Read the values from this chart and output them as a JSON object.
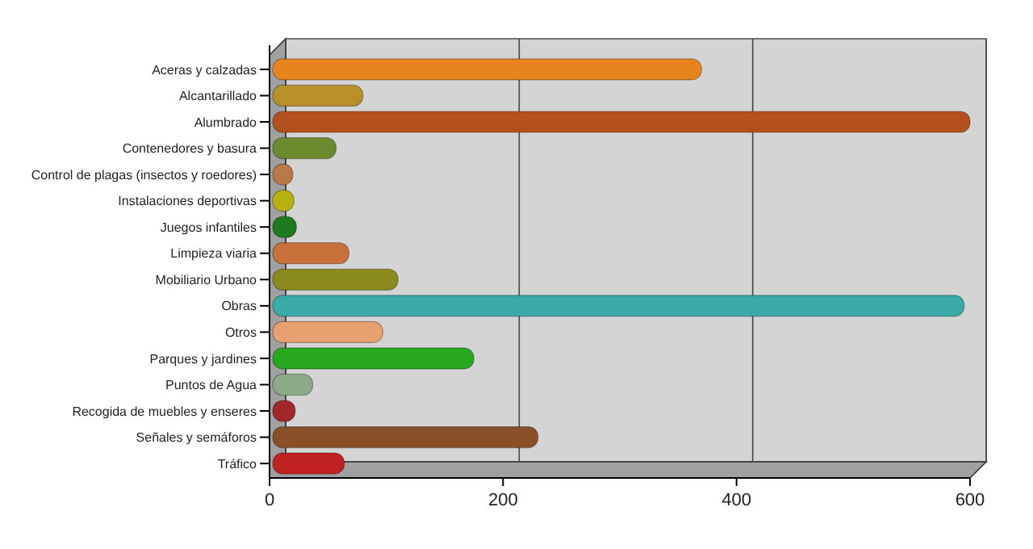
{
  "chart_data": {
    "type": "bar",
    "orientation": "horizontal",
    "categories": [
      "Aceras y calzadas",
      "Alcantarillado",
      "Alumbrado",
      "Contenedores y basura",
      "Control de plagas (insectos y roedores)",
      "Instalaciones deportivas",
      "Juegos infantiles",
      "Limpieza viaria",
      "Mobiliario Urbano",
      "Obras",
      "Otros",
      "Parques y jardines",
      "Puntos de Agua",
      "Recogida de muebles y enseres",
      "Señales y semáforos",
      "Tráfico"
    ],
    "values": [
      370,
      80,
      600,
      57,
      20,
      21,
      23,
      68,
      110,
      595,
      97,
      175,
      37,
      22,
      230,
      64
    ],
    "colors": [
      "#e8841e",
      "#b8902a",
      "#b4501e",
      "#6e8a2e",
      "#b87848",
      "#b8b010",
      "#1e7a1e",
      "#c8703a",
      "#8a8a1e",
      "#3aaaa8",
      "#e8a070",
      "#28a81e",
      "#8aaa88",
      "#a02828",
      "#8a5028",
      "#c02020"
    ],
    "xlim": [
      0,
      600
    ],
    "xticks": [
      0,
      200,
      400,
      600
    ],
    "grid": "x"
  }
}
